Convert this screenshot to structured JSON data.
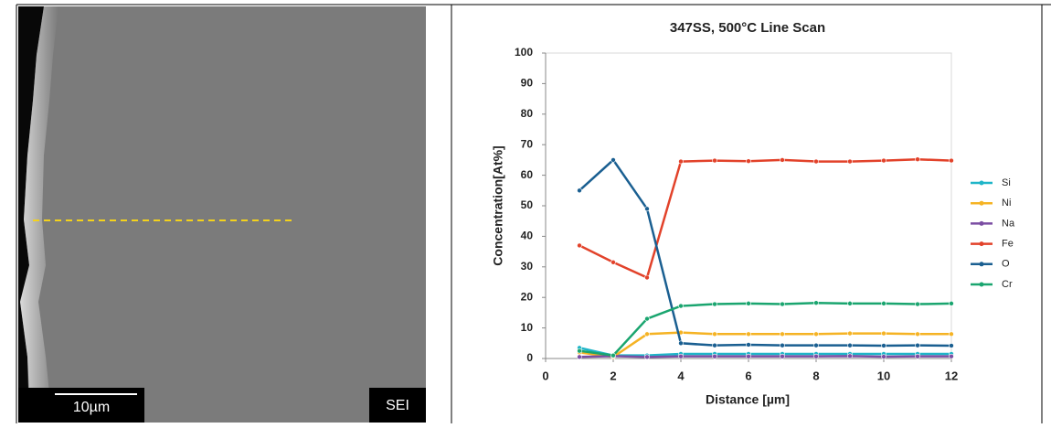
{
  "image": {
    "scale_label": "10µm",
    "mode_label": "SEI"
  },
  "chart_data": {
    "type": "line",
    "title": "347SS, 500°C Line Scan",
    "x_label": "Distance [µm]",
    "y_label": "Concentration[At%]",
    "x": [
      1,
      2,
      3,
      4,
      5,
      6,
      7,
      8,
      9,
      10,
      11,
      12
    ],
    "series": [
      {
        "name": "Si",
        "color": "#1fb5c8",
        "values": [
          3.5,
          1,
          1,
          1.5,
          1.5,
          1.5,
          1.5,
          1.5,
          1.5,
          1.5,
          1.5,
          1.5
        ]
      },
      {
        "name": "Ni",
        "color": "#f5b324",
        "values": [
          2,
          0.5,
          8,
          8.5,
          8,
          8,
          8,
          8,
          8.2,
          8.2,
          8,
          8
        ]
      },
      {
        "name": "Na",
        "color": "#7b4ea3",
        "values": [
          0.5,
          0.8,
          0.5,
          0.7,
          0.7,
          0.7,
          0.7,
          0.7,
          0.8,
          0.6,
          0.7,
          0.7
        ]
      },
      {
        "name": "Fe",
        "color": "#e2422a",
        "values": [
          37,
          31.5,
          26.5,
          64.5,
          64.8,
          64.6,
          65,
          64.5,
          64.5,
          64.8,
          65.2,
          64.8
        ]
      },
      {
        "name": "O",
        "color": "#1a5f91",
        "values": [
          55,
          65,
          49,
          5,
          4.3,
          4.5,
          4.3,
          4.3,
          4.3,
          4.2,
          4.3,
          4.2
        ]
      },
      {
        "name": "Cr",
        "color": "#1aa56f",
        "values": [
          2.5,
          1,
          13,
          17.2,
          17.8,
          18,
          17.8,
          18.2,
          18,
          18,
          17.8,
          18
        ]
      }
    ],
    "xlim": [
      0,
      12
    ],
    "xticks": [
      0,
      2,
      4,
      6,
      8,
      10,
      12
    ],
    "ylim": [
      0,
      100
    ],
    "yticks": [
      0,
      10,
      20,
      30,
      40,
      50,
      60,
      70,
      80,
      90,
      100
    ],
    "grid": false,
    "legend": "right"
  }
}
